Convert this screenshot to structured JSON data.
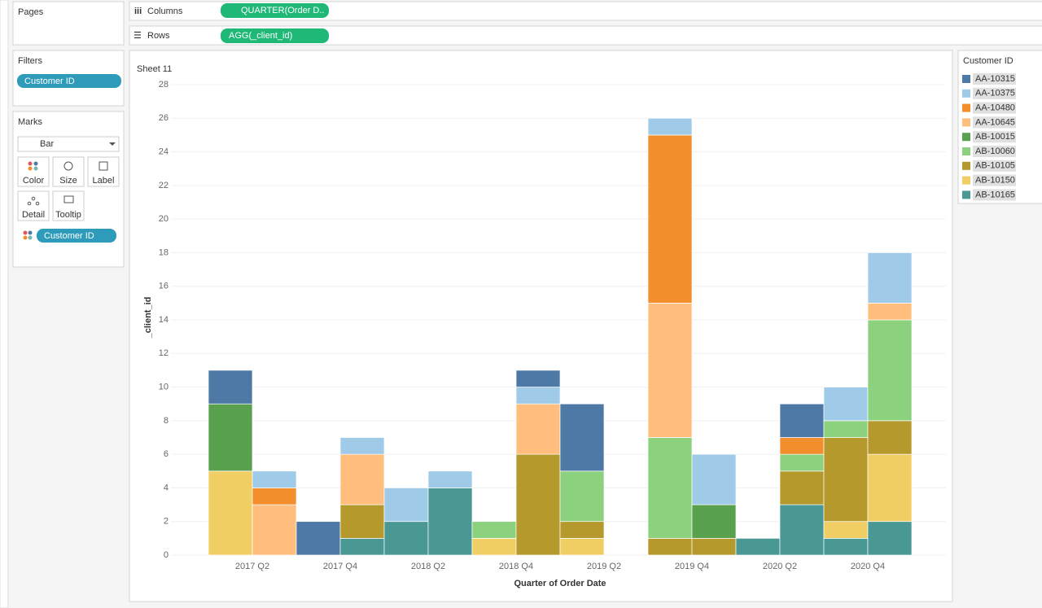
{
  "ui": {
    "pages": "Pages",
    "columns": "Columns",
    "columns_pill": "QUARTER(Order D..",
    "rows": "Rows",
    "rows_pill": "AGG(_client_id)",
    "filters": "Filters",
    "filter_pill": "Customer ID",
    "marks": "Marks",
    "mark_type": "Bar",
    "color": "Color",
    "size": "Size",
    "label": "Label",
    "detail": "Detail",
    "tooltip": "Tooltip",
    "marks_pill": "Customer ID"
  },
  "chart_data": {
    "type": "stacked_bar",
    "title": "Sheet 11",
    "xlabel": "Quarter of Order Date",
    "ylabel": "_client_id",
    "legend_title": "Customer ID",
    "categories": [
      "2017 Q2",
      null,
      "2017 Q4",
      null,
      "2018 Q2",
      null,
      "2018 Q4",
      null,
      "2019 Q2",
      null,
      "2019 Q4",
      null,
      "2020 Q2",
      null,
      "2020 Q4",
      null
    ],
    "series": [
      {
        "name": "AA-10315",
        "color": "#4e79a7",
        "values": [
          2,
          null,
          2,
          null,
          null,
          null,
          null,
          1,
          4,
          null,
          null,
          null,
          null,
          2,
          null,
          null
        ]
      },
      {
        "name": "AA-10375",
        "color": "#a0cbe8",
        "values": [
          null,
          1,
          null,
          1,
          2,
          1,
          null,
          1,
          null,
          null,
          1,
          3,
          null,
          null,
          2,
          3
        ]
      },
      {
        "name": "AA-10480",
        "color": "#f28e2b",
        "values": [
          null,
          1,
          null,
          null,
          null,
          null,
          null,
          null,
          null,
          null,
          10,
          null,
          null,
          1,
          null,
          null
        ]
      },
      {
        "name": "AA-10645",
        "color": "#ffbe7d",
        "values": [
          null,
          3,
          null,
          3,
          null,
          null,
          null,
          3,
          null,
          null,
          8,
          null,
          null,
          null,
          null,
          1
        ]
      },
      {
        "name": "AB-10015",
        "color": "#59a14f",
        "values": [
          4,
          null,
          null,
          null,
          null,
          null,
          null,
          null,
          null,
          null,
          null,
          2,
          null,
          null,
          null,
          null
        ]
      },
      {
        "name": "AB-10060",
        "color": "#8cd17d",
        "values": [
          null,
          null,
          null,
          null,
          null,
          null,
          1,
          null,
          3,
          null,
          6,
          null,
          null,
          1,
          1,
          6
        ]
      },
      {
        "name": "AB-10105",
        "color": "#b6992d",
        "values": [
          null,
          null,
          null,
          2,
          null,
          null,
          null,
          6,
          1,
          null,
          1,
          1,
          null,
          2,
          5,
          2
        ]
      },
      {
        "name": "AB-10150",
        "color": "#f1ce63",
        "values": [
          5,
          null,
          null,
          null,
          null,
          null,
          1,
          null,
          1,
          null,
          null,
          null,
          null,
          null,
          1,
          4
        ]
      },
      {
        "name": "AB-10165",
        "color": "#499894",
        "values": [
          null,
          null,
          null,
          1,
          2,
          4,
          null,
          null,
          null,
          null,
          null,
          null,
          1,
          3,
          1,
          2
        ]
      }
    ],
    "ylim": [
      0,
      28
    ],
    "yticks": [
      0,
      2,
      4,
      6,
      8,
      10,
      12,
      14,
      16,
      18,
      20,
      22,
      24,
      26,
      28
    ],
    "grid": true
  }
}
